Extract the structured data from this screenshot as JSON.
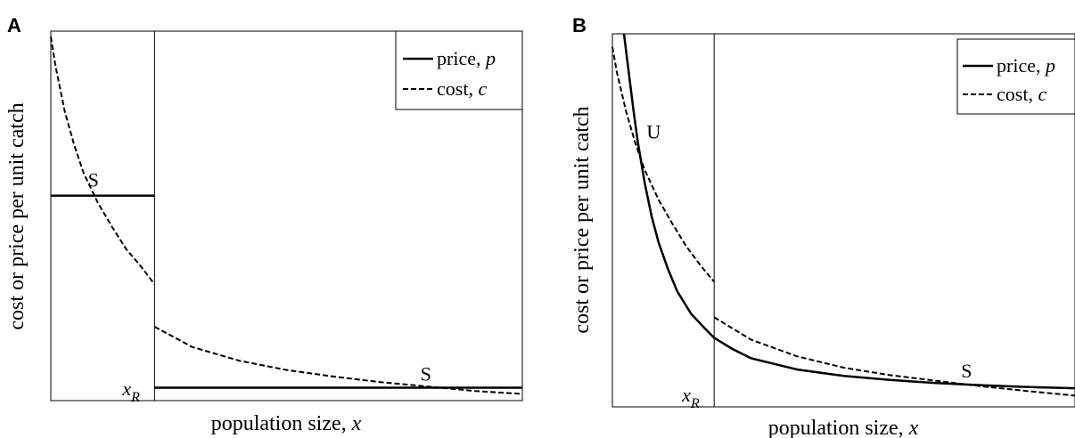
{
  "chart_data": [
    {
      "panel": "A",
      "type": "line",
      "xlabel_text": "population size, ",
      "xlabel_var": "x",
      "ylabel": "cost or price per unit catch",
      "xlim": [
        0,
        10
      ],
      "ylim": [
        0,
        1
      ],
      "threshold": {
        "label_main": "x",
        "label_sub": "R",
        "x": 2.2
      },
      "legend": {
        "position": "top-right",
        "entries": [
          {
            "series": "price",
            "text": "price, ",
            "var": "p"
          },
          {
            "series": "cost",
            "text": "cost, ",
            "var": "c"
          }
        ]
      },
      "series": [
        {
          "name": "price",
          "style": "solid",
          "segments": [
            {
              "x": [
                0,
                2.2
              ],
              "y": [
                0.555,
                0.555
              ]
            },
            {
              "x": [
                2.2,
                10
              ],
              "y": [
                0.035,
                0.035
              ]
            }
          ]
        },
        {
          "name": "cost",
          "style": "dashed",
          "segments": [
            {
              "x": [
                0,
                0.1,
                0.3,
                0.5,
                0.7,
                1.0,
                1.3,
                1.6,
                1.9,
                2.2
              ],
              "y": [
                0.985,
                0.905,
                0.78,
                0.69,
                0.615,
                0.535,
                0.47,
                0.41,
                0.365,
                0.315
              ]
            },
            {
              "x": [
                2.2,
                3.0,
                4.0,
                5.0,
                6.0,
                7.0,
                8.0,
                9.0,
                10.0
              ],
              "y": [
                0.2,
                0.145,
                0.108,
                0.083,
                0.065,
                0.05,
                0.038,
                0.026,
                0.018
              ]
            }
          ]
        }
      ],
      "annotations": [
        {
          "text": "S",
          "x": 0.75,
          "y": 0.56
        },
        {
          "text": "S",
          "x": 7.8,
          "y": 0.035
        }
      ]
    },
    {
      "panel": "B",
      "type": "line",
      "xlabel_text": "population size, ",
      "xlabel_var": "x",
      "ylabel": "cost or price per unit catch",
      "xlim": [
        0,
        10
      ],
      "ylim": [
        0,
        1
      ],
      "threshold": {
        "label_main": "x",
        "label_sub": "R",
        "x": 2.2
      },
      "legend": {
        "position": "top-right",
        "entries": [
          {
            "series": "price",
            "text": "price, ",
            "var": "p"
          },
          {
            "series": "cost",
            "text": "cost, ",
            "var": "c"
          }
        ]
      },
      "series": [
        {
          "name": "price",
          "style": "solid",
          "segments": [
            {
              "x": [
                0.25,
                0.35,
                0.45,
                0.55,
                0.7,
                0.85,
                1.0,
                1.2,
                1.4,
                1.7,
                2.0,
                2.2,
                2.6,
                3.0,
                4.0,
                5.0,
                6.0,
                7.0,
                8.0,
                9.0,
                10.0
              ],
              "y": [
                1.0,
                0.9,
                0.8,
                0.71,
                0.6,
                0.51,
                0.44,
                0.37,
                0.31,
                0.25,
                0.21,
                0.185,
                0.155,
                0.13,
                0.1,
                0.083,
                0.072,
                0.064,
                0.058,
                0.053,
                0.05
              ]
            }
          ]
        },
        {
          "name": "cost",
          "style": "dashed",
          "segments": [
            {
              "x": [
                0,
                0.1,
                0.3,
                0.5,
                0.7,
                1.0,
                1.3,
                1.6,
                1.9,
                2.2
              ],
              "y": [
                0.965,
                0.895,
                0.79,
                0.705,
                0.635,
                0.555,
                0.49,
                0.43,
                0.38,
                0.335
              ]
            },
            {
              "x": [
                2.2,
                3.0,
                4.0,
                5.0,
                6.0,
                7.0,
                8.0,
                9.0,
                10.0
              ],
              "y": [
                0.24,
                0.18,
                0.135,
                0.105,
                0.085,
                0.07,
                0.055,
                0.042,
                0.03
              ]
            }
          ]
        }
      ],
      "annotations": [
        {
          "text": "U",
          "x": 0.7,
          "y": 0.7
        },
        {
          "text": "S",
          "x": 7.5,
          "y": 0.06
        }
      ]
    }
  ]
}
